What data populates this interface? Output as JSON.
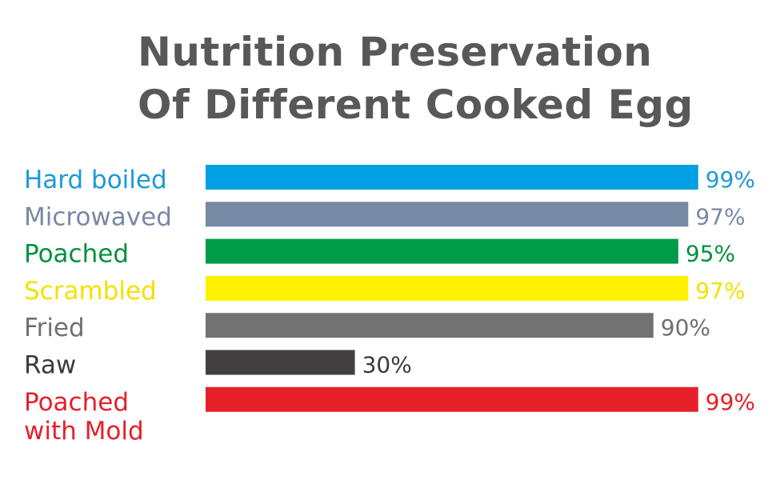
{
  "title_line1": "Nutrition Preservation",
  "title_line2": "Of Different Cooked Egg",
  "chart_data": {
    "type": "bar",
    "orientation": "horizontal",
    "title": "Nutrition Preservation Of Different Cooked Egg",
    "categories": [
      [
        "Hard boiled"
      ],
      [
        "Microwaved"
      ],
      [
        "Poached"
      ],
      [
        "Scrambled"
      ],
      [
        "Fried"
      ],
      [
        "Raw"
      ],
      [
        "Poached",
        "with Mold"
      ]
    ],
    "values": [
      99,
      97,
      95,
      97,
      90,
      30,
      99
    ],
    "value_labels": [
      "99%",
      "97%",
      "95%",
      "97%",
      "90%",
      "30%",
      "99%"
    ],
    "bar_colors": [
      "#00a0e3",
      "#7689a5",
      "#009b48",
      "#fff100",
      "#727272",
      "#424040",
      "#e52029"
    ],
    "label_colors": [
      "#1e9ad6",
      "#7a88a6",
      "#00913e",
      "#f4e100",
      "#707070",
      "#3c3a3a",
      "#e52029"
    ],
    "value_label_colors": [
      "#1e9ad6",
      "#7a88a6",
      "#00913e",
      "#f4e100",
      "#707070",
      "#3c3a3a",
      "#e52029"
    ],
    "xlim": [
      0,
      100
    ],
    "grid": false,
    "legend": "none"
  }
}
